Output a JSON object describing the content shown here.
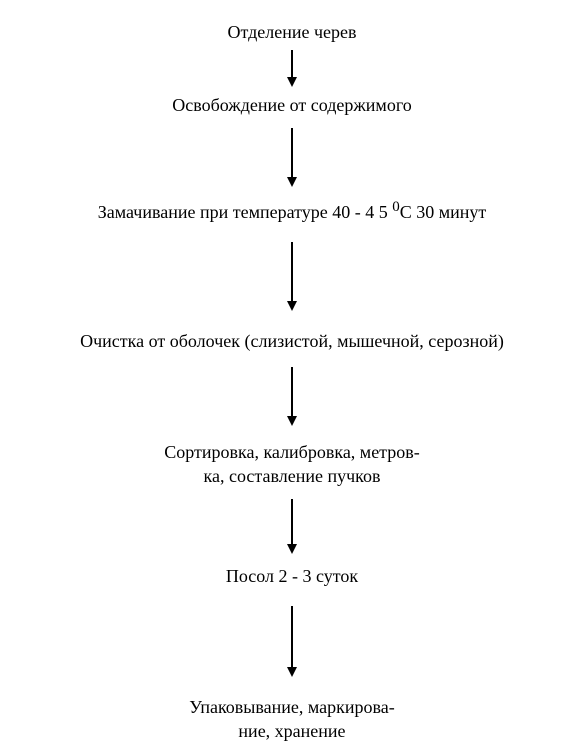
{
  "flowchart": {
    "type": "flowchart",
    "background_color": "#ffffff",
    "text_color": "#000000",
    "arrow_color": "#000000",
    "font_family": "Times New Roman, serif",
    "node_fontsize": 18,
    "nodes": [
      {
        "label": "Отделение черев",
        "gap_after": 6,
        "arrow_height": 28
      },
      {
        "label": "Освобождение от  содержимого",
        "gap_before": 6,
        "gap_after": 10,
        "arrow_height": 50
      },
      {
        "label_html": "Замачивание при температуре 40 - 4 5 <sup>0</sup>С 30 минут",
        "gap_before": 10,
        "gap_after": 18,
        "arrow_height": 60
      },
      {
        "label": "Очистка от оболочек  (слизистой, мышечной, серозной)",
        "gap_before": 18,
        "gap_after": 14,
        "arrow_height": 50
      },
      {
        "label_lines": [
          "Сортировка, калибровка, метров-",
          "ка, составление пучков"
        ],
        "gap_before": 14,
        "gap_after": 10,
        "arrow_height": 46
      },
      {
        "label": "Посол 2 - 3 суток",
        "gap_before": 10,
        "gap_after": 18,
        "arrow_height": 62
      },
      {
        "label_lines": [
          "Упаковывание, маркирова-",
          "ние, хранение"
        ],
        "gap_before": 18
      }
    ]
  }
}
